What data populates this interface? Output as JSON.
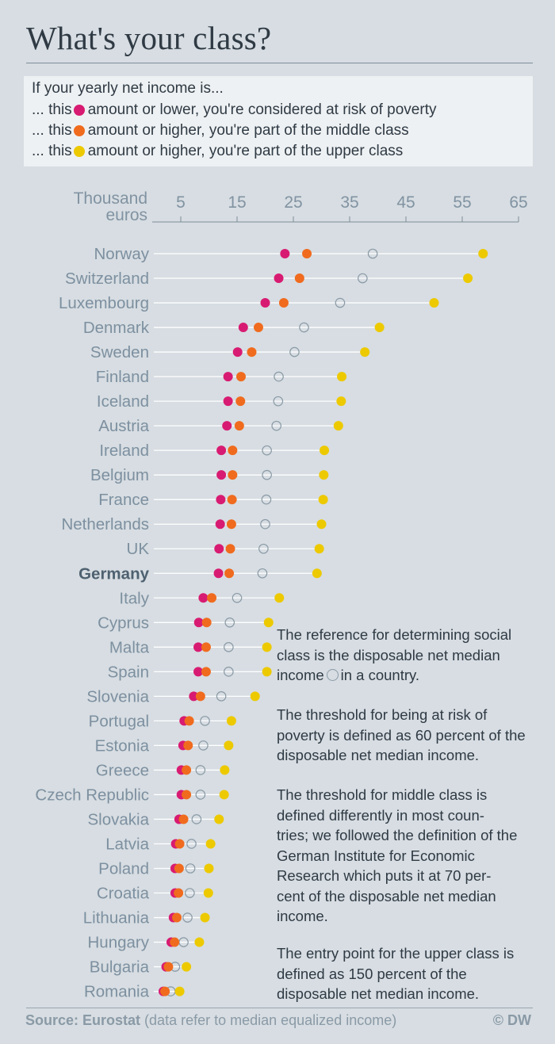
{
  "title": "What's your class?",
  "legend": {
    "intro": "If your yearly net income is...",
    "items": [
      {
        "prefix": "... this",
        "text": "amount or lower, you're considered at risk of poverty",
        "color": "#d81b72"
      },
      {
        "prefix": "... this",
        "text": "amount or higher, you're part of the middle class",
        "color": "#f06b1e"
      },
      {
        "prefix": "... this",
        "text": "amount or higher, you're part of the upper class",
        "color": "#edc900"
      }
    ]
  },
  "axis_unit": "Thousand\neuros",
  "notes": {
    "p1_before": "The reference for determining social class is the disposable net median income",
    "p1_after": "in a country.",
    "p2": "The threshold for being at risk of poverty is defined as 60 percent of the disposable net median income.",
    "p3": "The threshold for middle class is defined differently in most coun-\ntries; we followed the definition of the German Institute for Economic Research which puts it at 70 per-\ncent of the disposable net median income.",
    "p4": "The entry point for the upper class is defined as 150 percent of the disposable net median income."
  },
  "footer": {
    "source_label": "Source: Eurostat",
    "source_note": "(data refer to median equalized income)",
    "credit": "© DW"
  },
  "colors": {
    "poverty": "#d81b72",
    "middle": "#f06b1e",
    "upper": "#edc900",
    "median": "#8a9aa6"
  },
  "chart_data": {
    "type": "scatter",
    "title": "What's your class?",
    "xlabel": "Thousand euros",
    "xlim": [
      1,
      65
    ],
    "xticks": [
      5,
      15,
      25,
      35,
      45,
      55,
      65
    ],
    "grid": false,
    "highlight": "Germany",
    "series": [
      {
        "name": "amount or lower, you're considered at risk of poverty",
        "key": "poverty"
      },
      {
        "name": "amount or higher, you're part of the middle class",
        "key": "middle"
      },
      {
        "name": "median",
        "key": "median"
      },
      {
        "name": "amount or higher, you're part of the upper class",
        "key": "upper"
      }
    ],
    "countries": [
      {
        "name": "Norway",
        "poverty": 23.5,
        "middle": 27.4,
        "median": 39.1,
        "upper": 58.7
      },
      {
        "name": "Switzerland",
        "poverty": 22.4,
        "middle": 26.1,
        "median": 37.3,
        "upper": 56.0
      },
      {
        "name": "Luxembourg",
        "poverty": 20.0,
        "middle": 23.3,
        "median": 33.3,
        "upper": 50.0
      },
      {
        "name": "Denmark",
        "poverty": 16.1,
        "middle": 18.8,
        "median": 26.9,
        "upper": 40.3
      },
      {
        "name": "Sweden",
        "poverty": 15.1,
        "middle": 17.6,
        "median": 25.2,
        "upper": 37.7
      },
      {
        "name": "Finland",
        "poverty": 13.4,
        "middle": 15.7,
        "median": 22.4,
        "upper": 33.6
      },
      {
        "name": "Iceland",
        "poverty": 13.4,
        "middle": 15.6,
        "median": 22.3,
        "upper": 33.5
      },
      {
        "name": "Austria",
        "poverty": 13.2,
        "middle": 15.4,
        "median": 22.0,
        "upper": 33.0
      },
      {
        "name": "Ireland",
        "poverty": 12.2,
        "middle": 14.2,
        "median": 20.3,
        "upper": 30.5
      },
      {
        "name": "Belgium",
        "poverty": 12.2,
        "middle": 14.2,
        "median": 20.3,
        "upper": 30.4
      },
      {
        "name": "France",
        "poverty": 12.1,
        "middle": 14.1,
        "median": 20.2,
        "upper": 30.3
      },
      {
        "name": "Netherlands",
        "poverty": 12.0,
        "middle": 14.0,
        "median": 20.0,
        "upper": 30.0
      },
      {
        "name": "UK",
        "poverty": 11.8,
        "middle": 13.8,
        "median": 19.7,
        "upper": 29.6
      },
      {
        "name": "Germany",
        "poverty": 11.7,
        "middle": 13.6,
        "median": 19.5,
        "upper": 29.2
      },
      {
        "name": "Italy",
        "poverty": 9.0,
        "middle": 10.5,
        "median": 15.0,
        "upper": 22.5
      },
      {
        "name": "Cyprus",
        "poverty": 8.2,
        "middle": 9.6,
        "median": 13.7,
        "upper": 20.6
      },
      {
        "name": "Malta",
        "poverty": 8.1,
        "middle": 9.5,
        "median": 13.5,
        "upper": 20.3
      },
      {
        "name": "Spain",
        "poverty": 8.1,
        "middle": 9.5,
        "median": 13.5,
        "upper": 20.3
      },
      {
        "name": "Slovenia",
        "poverty": 7.3,
        "middle": 8.5,
        "median": 12.2,
        "upper": 18.2
      },
      {
        "name": "Portugal",
        "poverty": 5.6,
        "middle": 6.5,
        "median": 9.3,
        "upper": 14.0
      },
      {
        "name": "Estonia",
        "poverty": 5.4,
        "middle": 6.3,
        "median": 9.0,
        "upper": 13.5
      },
      {
        "name": "Greece",
        "poverty": 5.1,
        "middle": 6.0,
        "median": 8.5,
        "upper": 12.8
      },
      {
        "name": "Czech Republic",
        "poverty": 5.1,
        "middle": 6.0,
        "median": 8.5,
        "upper": 12.7
      },
      {
        "name": "Slovakia",
        "poverty": 4.7,
        "middle": 5.5,
        "median": 7.8,
        "upper": 11.8
      },
      {
        "name": "Latvia",
        "poverty": 4.1,
        "middle": 4.8,
        "median": 6.9,
        "upper": 10.3
      },
      {
        "name": "Poland",
        "poverty": 4.0,
        "middle": 4.7,
        "median": 6.7,
        "upper": 10.0
      },
      {
        "name": "Croatia",
        "poverty": 4.0,
        "middle": 4.6,
        "median": 6.6,
        "upper": 9.9
      },
      {
        "name": "Lithuania",
        "poverty": 3.7,
        "middle": 4.3,
        "median": 6.2,
        "upper": 9.3
      },
      {
        "name": "Hungary",
        "poverty": 3.3,
        "middle": 3.9,
        "median": 5.5,
        "upper": 8.3
      },
      {
        "name": "Bulgaria",
        "poverty": 2.4,
        "middle": 2.8,
        "median": 4.0,
        "upper": 6.0
      },
      {
        "name": "Romania",
        "poverty": 1.9,
        "middle": 2.2,
        "median": 3.2,
        "upper": 4.8
      }
    ]
  }
}
